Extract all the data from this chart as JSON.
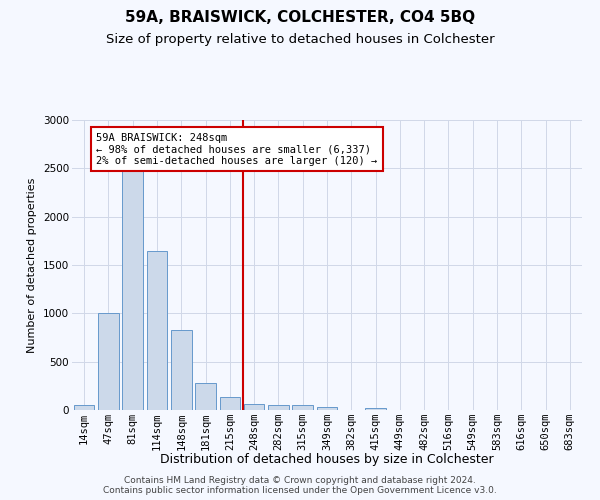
{
  "title": "59A, BRAISWICK, COLCHESTER, CO4 5BQ",
  "subtitle": "Size of property relative to detached houses in Colchester",
  "xlabel": "Distribution of detached houses by size in Colchester",
  "ylabel": "Number of detached properties",
  "footer_line1": "Contains HM Land Registry data © Crown copyright and database right 2024.",
  "footer_line2": "Contains public sector information licensed under the Open Government Licence v3.0.",
  "bar_labels": [
    "14sqm",
    "47sqm",
    "81sqm",
    "114sqm",
    "148sqm",
    "181sqm",
    "215sqm",
    "248sqm",
    "282sqm",
    "315sqm",
    "349sqm",
    "382sqm",
    "415sqm",
    "449sqm",
    "482sqm",
    "516sqm",
    "549sqm",
    "583sqm",
    "616sqm",
    "650sqm",
    "683sqm"
  ],
  "bar_values": [
    55,
    1000,
    2470,
    1650,
    830,
    280,
    130,
    60,
    50,
    50,
    30,
    0,
    25,
    0,
    0,
    0,
    0,
    0,
    0,
    0,
    0
  ],
  "bar_color": "#ccd9ea",
  "bar_edge_color": "#6699cc",
  "grid_color": "#d0d8e8",
  "vline_x_index": 7,
  "vline_color": "#cc0000",
  "annotation_line1": "59A BRAISWICK: 248sqm",
  "annotation_line2": "← 98% of detached houses are smaller (6,337)",
  "annotation_line3": "2% of semi-detached houses are larger (120) →",
  "annotation_box_color": "#cc0000",
  "ylim": [
    0,
    3000
  ],
  "yticks": [
    0,
    500,
    1000,
    1500,
    2000,
    2500,
    3000
  ],
  "background_color": "#f5f8ff",
  "title_fontsize": 11,
  "subtitle_fontsize": 9.5,
  "xlabel_fontsize": 9,
  "ylabel_fontsize": 8,
  "tick_fontsize": 7.5,
  "footer_fontsize": 6.5
}
